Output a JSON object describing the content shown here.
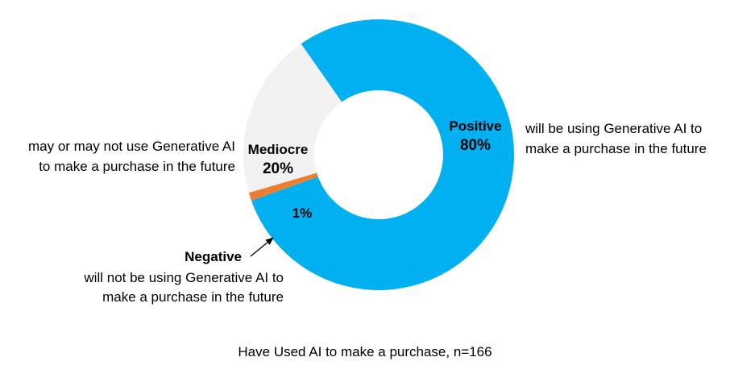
{
  "chart_data": {
    "type": "pie",
    "style": "donut",
    "caption": "Have Used AI to make a purchase, n=166",
    "slices": [
      {
        "name": "Positive",
        "value": 80,
        "label": "80%",
        "description_line1": "will be using Generative AI to",
        "description_line2": "make a purchase in the future",
        "color": "#00B0F0"
      },
      {
        "name": "Negative",
        "value": 1,
        "label": "1%",
        "description_line1": "will not be using Generative AI to",
        "description_line2": "make a purchase in the future",
        "color": "#ED7D31"
      },
      {
        "name": "Mediocre",
        "value": 20,
        "label": "20%",
        "description_line1": "may or may not use Generative AI",
        "description_line2": "to make a purchase in the future",
        "color": "#F2F2F2"
      }
    ]
  }
}
